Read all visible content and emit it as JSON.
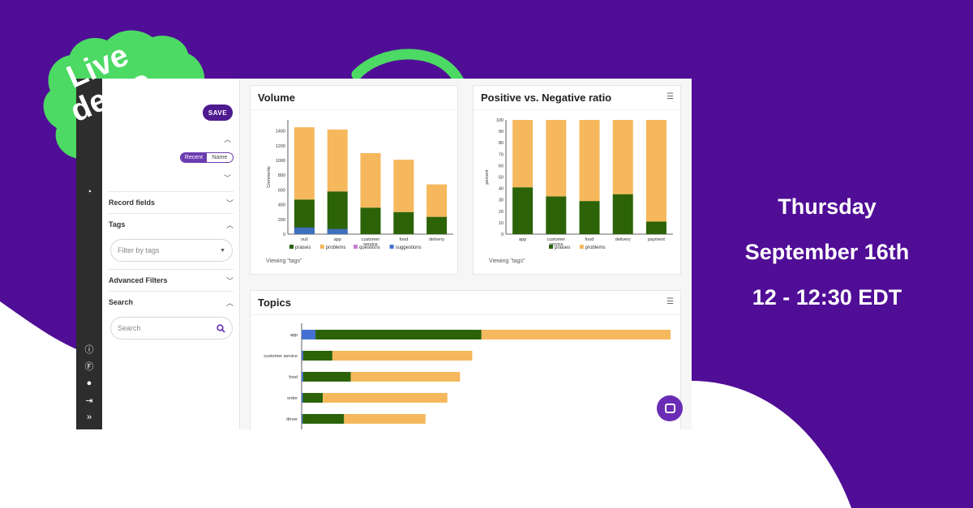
{
  "badge": {
    "line1": "Live",
    "line2": "demo"
  },
  "event": {
    "day": "Thursday",
    "date": "September 16th",
    "time": "12 - 12:30 EDT"
  },
  "colors": {
    "background": "#500d96",
    "badge_green": "#4cd964",
    "praises": "#2c6308",
    "problems": "#f5b85c",
    "questions": "#c77ad6",
    "suggestions": "#4470d4",
    "accent": "#4d1a8f"
  },
  "sidebar": {
    "save_label": "SAVE",
    "sort_options": [
      "Recent",
      "Name"
    ],
    "sections": {
      "record_fields": "Record fields",
      "tags": "Tags",
      "advanced_filters": "Advanced Filters",
      "search": "Search"
    },
    "tags_placeholder": "Filter by tags",
    "search_placeholder": "Search"
  },
  "rail_icons": [
    "info-icon",
    "filter-icon",
    "user-icon",
    "logout-icon",
    "expand-icon"
  ],
  "panels": {
    "volume_title": "Volume",
    "ratio_title": "Positive vs. Negative ratio",
    "topics_title": "Topics",
    "viewing_text": "Viewing \"tags\""
  },
  "chart_data": [
    {
      "type": "bar",
      "stacked": true,
      "title": "Volume",
      "categories": [
        "null",
        "app",
        "customer service",
        "food",
        "delivery"
      ],
      "series": [
        {
          "name": "praises",
          "values": [
            470,
            580,
            360,
            300,
            235
          ]
        },
        {
          "name": "problems",
          "values": [
            980,
            840,
            740,
            710,
            440
          ]
        },
        {
          "name": "questions",
          "values": [
            0,
            0,
            0,
            0,
            0
          ]
        },
        {
          "name": "suggestions",
          "values": [
            90,
            70,
            0,
            0,
            0
          ]
        }
      ],
      "ylabel": "Comments",
      "yticks": [
        0,
        200,
        400,
        600,
        800,
        1000,
        1200,
        1400
      ],
      "ylim": [
        0,
        1550
      ],
      "legend": [
        "praises",
        "problems",
        "questions",
        "suggestions"
      ]
    },
    {
      "type": "bar",
      "stacked": true,
      "title": "Positive vs. Negative ratio",
      "categories": [
        "app",
        "customer service",
        "food",
        "delivery",
        "payment"
      ],
      "series": [
        {
          "name": "praises",
          "values": [
            41,
            33,
            29,
            35,
            11
          ]
        },
        {
          "name": "problems",
          "values": [
            59,
            67,
            71,
            65,
            89
          ]
        }
      ],
      "ylabel": "percent",
      "yticks": [
        0,
        10,
        20,
        30,
        40,
        50,
        60,
        70,
        80,
        90,
        100
      ],
      "ylim": [
        0,
        100
      ],
      "legend": [
        "praises",
        "problems"
      ]
    },
    {
      "type": "bar",
      "orientation": "horizontal",
      "stacked": true,
      "title": "Topics",
      "categories": [
        "app",
        "customer service",
        "food",
        "order",
        "driver"
      ],
      "series": [
        {
          "name": "suggestions",
          "values": [
            45,
            5,
            5,
            4,
            3
          ]
        },
        {
          "name": "praises",
          "values": [
            540,
            95,
            155,
            65,
            135
          ]
        },
        {
          "name": "problems",
          "values": [
            615,
            455,
            355,
            405,
            265
          ]
        }
      ]
    }
  ]
}
